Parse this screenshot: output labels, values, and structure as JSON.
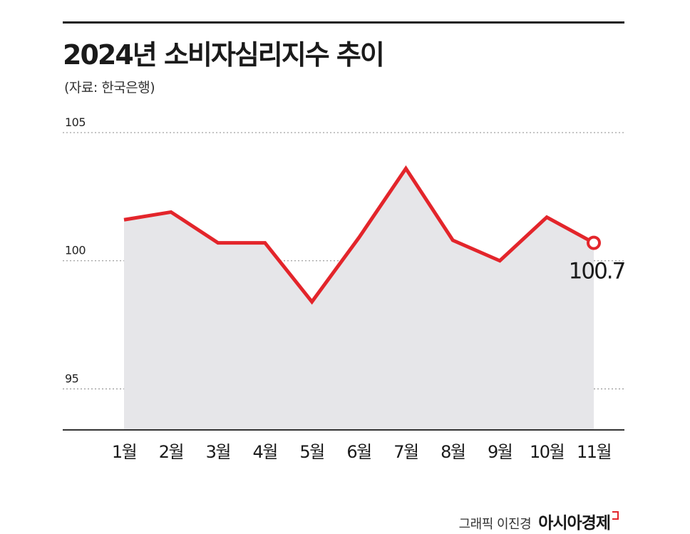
{
  "header": {
    "title": "2024년 소비자심리지수 추이",
    "source": "(자료: 한국은행)"
  },
  "credit": {
    "author": "그래픽 이진경",
    "brand": "아시아경제"
  },
  "colors": {
    "line": "#e3252b",
    "area": "#e6e6e9",
    "grid": "#888888",
    "axis": "#333333"
  },
  "chart_data": {
    "type": "area",
    "title": "2024년 소비자심리지수 추이",
    "subtitle": "(자료: 한국은행)",
    "xlabel": "",
    "ylabel": "",
    "categories": [
      "1월",
      "2월",
      "3월",
      "4월",
      "5월",
      "6월",
      "7월",
      "8월",
      "9월",
      "10월",
      "11월"
    ],
    "series": [
      {
        "values": [
          101.6,
          101.9,
          100.7,
          100.7,
          98.4,
          100.9,
          103.6,
          100.8,
          100.0,
          101.7,
          100.7
        ]
      }
    ],
    "yticks": [
      95,
      100,
      105
    ],
    "ylim": [
      93.4,
      105
    ],
    "grid": true,
    "annotations": [
      {
        "category": "11월",
        "label": "100.7"
      }
    ]
  }
}
